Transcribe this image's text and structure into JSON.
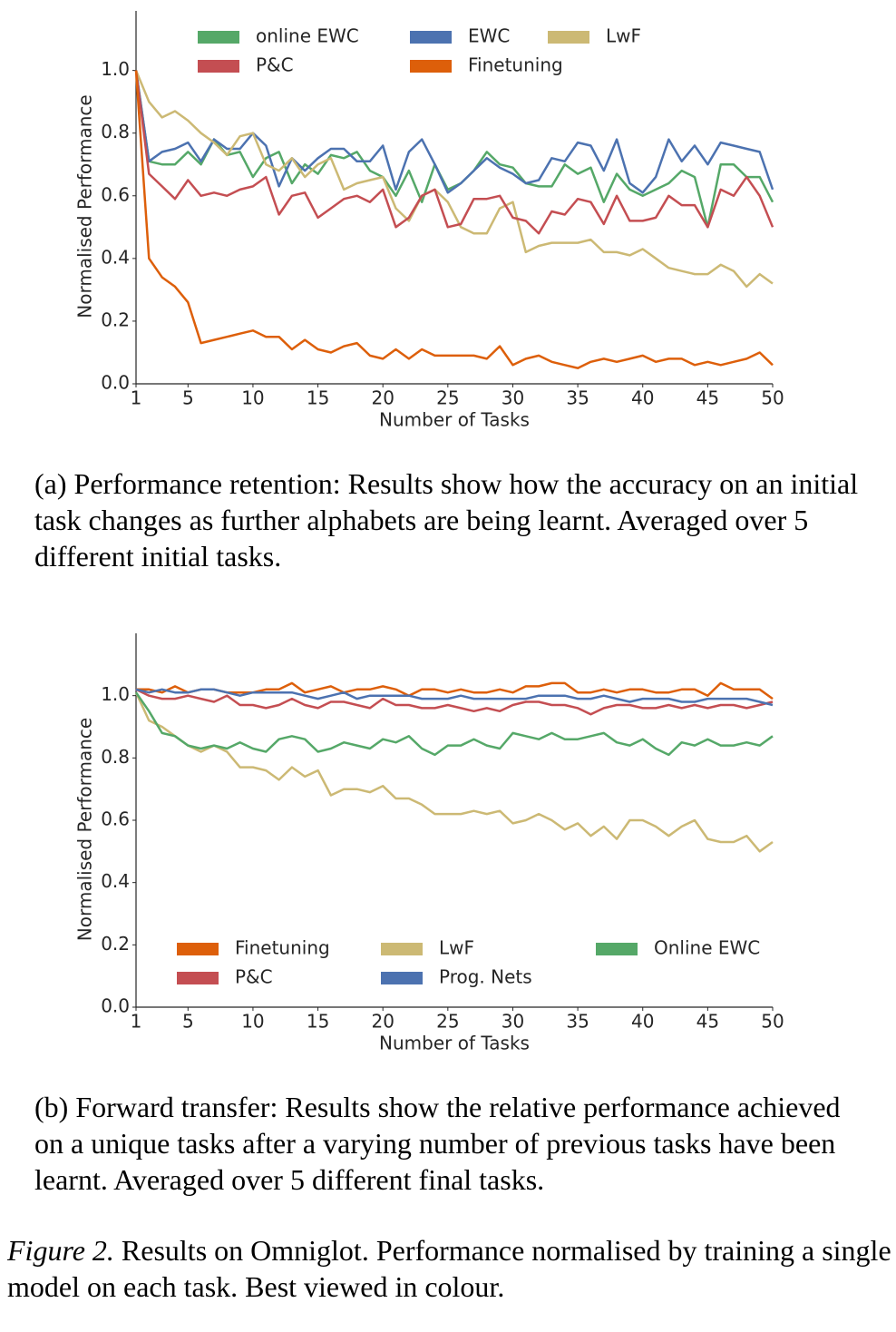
{
  "chart_data": [
    {
      "type": "line",
      "xlabel": "Number of Tasks",
      "ylabel": "Normalised Performance",
      "legend": "upper center",
      "x": [
        1,
        2,
        3,
        4,
        5,
        6,
        7,
        8,
        9,
        10,
        11,
        12,
        13,
        14,
        15,
        16,
        17,
        18,
        19,
        20,
        21,
        22,
        23,
        24,
        25,
        26,
        27,
        28,
        29,
        30,
        31,
        32,
        33,
        34,
        35,
        36,
        37,
        38,
        39,
        40,
        41,
        42,
        43,
        44,
        45,
        46,
        47,
        48,
        49,
        50
      ],
      "xlim": [
        1,
        50
      ],
      "xticks": [
        1,
        5,
        10,
        15,
        20,
        25,
        30,
        35,
        40,
        45,
        50
      ],
      "ylim": [
        0,
        1.19
      ],
      "yticks": [
        {
          "value": 0,
          "label": "0.0"
        },
        0.2,
        0.4,
        0.6,
        0.8,
        {
          "value": 1,
          "label": "1.0"
        }
      ],
      "series": [
        {
          "name": "online EWC",
          "color": "#55a868",
          "values": [
            1.0,
            0.71,
            0.7,
            0.7,
            0.74,
            0.7,
            0.78,
            0.73,
            0.74,
            0.66,
            0.72,
            0.74,
            0.64,
            0.7,
            0.67,
            0.73,
            0.72,
            0.74,
            0.68,
            0.66,
            0.6,
            0.68,
            0.58,
            0.7,
            0.62,
            0.64,
            0.68,
            0.74,
            0.7,
            0.69,
            0.64,
            0.63,
            0.63,
            0.7,
            0.67,
            0.69,
            0.58,
            0.67,
            0.62,
            0.6,
            0.62,
            0.64,
            0.68,
            0.66,
            0.5,
            0.7,
            0.7,
            0.66,
            0.66,
            0.58
          ]
        },
        {
          "name": "EWC",
          "color": "#4c72b0",
          "values": [
            1.0,
            0.71,
            0.74,
            0.75,
            0.77,
            0.71,
            0.78,
            0.75,
            0.75,
            0.8,
            0.76,
            0.63,
            0.72,
            0.68,
            0.72,
            0.75,
            0.75,
            0.71,
            0.71,
            0.76,
            0.62,
            0.74,
            0.78,
            0.7,
            0.61,
            0.64,
            0.68,
            0.72,
            0.69,
            0.67,
            0.64,
            0.65,
            0.72,
            0.71,
            0.77,
            0.76,
            0.68,
            0.78,
            0.64,
            0.61,
            0.66,
            0.78,
            0.71,
            0.76,
            0.7,
            0.77,
            0.76,
            0.75,
            0.74,
            0.62
          ]
        },
        {
          "name": "LwF",
          "color": "#ccb974",
          "values": [
            1.0,
            0.9,
            0.85,
            0.87,
            0.84,
            0.8,
            0.77,
            0.73,
            0.79,
            0.8,
            0.7,
            0.68,
            0.72,
            0.66,
            0.7,
            0.72,
            0.62,
            0.64,
            0.65,
            0.66,
            0.56,
            0.52,
            0.6,
            0.62,
            0.58,
            0.5,
            0.48,
            0.48,
            0.56,
            0.58,
            0.42,
            0.44,
            0.45,
            0.45,
            0.45,
            0.46,
            0.42,
            0.42,
            0.41,
            0.43,
            0.4,
            0.37,
            0.36,
            0.35,
            0.35,
            0.38,
            0.36,
            0.31,
            0.35,
            0.32
          ]
        },
        {
          "name": "P&C",
          "color": "#c44e52",
          "values": [
            1.0,
            0.67,
            0.63,
            0.59,
            0.65,
            0.6,
            0.61,
            0.6,
            0.62,
            0.63,
            0.66,
            0.54,
            0.6,
            0.61,
            0.53,
            0.56,
            0.59,
            0.6,
            0.58,
            0.62,
            0.5,
            0.53,
            0.6,
            0.62,
            0.5,
            0.51,
            0.59,
            0.59,
            0.6,
            0.53,
            0.52,
            0.48,
            0.55,
            0.54,
            0.59,
            0.58,
            0.51,
            0.6,
            0.52,
            0.52,
            0.53,
            0.6,
            0.57,
            0.57,
            0.5,
            0.62,
            0.6,
            0.66,
            0.6,
            0.5
          ]
        },
        {
          "name": "Finetuning",
          "color": "#dd5f0a",
          "values": [
            1.0,
            0.4,
            0.34,
            0.31,
            0.26,
            0.13,
            0.14,
            0.15,
            0.16,
            0.17,
            0.15,
            0.15,
            0.11,
            0.14,
            0.11,
            0.1,
            0.12,
            0.13,
            0.09,
            0.08,
            0.11,
            0.08,
            0.11,
            0.09,
            0.09,
            0.09,
            0.09,
            0.08,
            0.12,
            0.06,
            0.08,
            0.09,
            0.07,
            0.06,
            0.05,
            0.07,
            0.08,
            0.07,
            0.08,
            0.09,
            0.07,
            0.08,
            0.08,
            0.06,
            0.07,
            0.06,
            0.07,
            0.08,
            0.1,
            0.06
          ]
        }
      ]
    },
    {
      "type": "line",
      "xlabel": "Number of Tasks",
      "ylabel": "Normalised Performance",
      "legend": "lower center",
      "x": [
        1,
        2,
        3,
        4,
        5,
        6,
        7,
        8,
        9,
        10,
        11,
        12,
        13,
        14,
        15,
        16,
        17,
        18,
        19,
        20,
        21,
        22,
        23,
        24,
        25,
        26,
        27,
        28,
        29,
        30,
        31,
        32,
        33,
        34,
        35,
        36,
        37,
        38,
        39,
        40,
        41,
        42,
        43,
        44,
        45,
        46,
        47,
        48,
        49,
        50
      ],
      "xlim": [
        1,
        50
      ],
      "xticks": [
        1,
        5,
        10,
        15,
        20,
        25,
        30,
        35,
        40,
        45,
        50
      ],
      "ylim": [
        0,
        1.2
      ],
      "yticks": [
        {
          "value": 0,
          "label": "0.0"
        },
        0.2,
        0.4,
        0.6,
        0.8,
        {
          "value": 1,
          "label": "1.0"
        }
      ],
      "series": [
        {
          "name": "Finetuning",
          "color": "#dd5f0a",
          "values": [
            1.02,
            1.02,
            1.01,
            1.03,
            1.01,
            1.02,
            1.02,
            1.01,
            1.01,
            1.01,
            1.02,
            1.02,
            1.04,
            1.01,
            1.02,
            1.03,
            1.01,
            1.02,
            1.02,
            1.03,
            1.02,
            1.0,
            1.02,
            1.02,
            1.01,
            1.02,
            1.01,
            1.01,
            1.02,
            1.01,
            1.03,
            1.03,
            1.04,
            1.04,
            1.01,
            1.01,
            1.02,
            1.01,
            1.02,
            1.02,
            1.01,
            1.01,
            1.02,
            1.02,
            1.0,
            1.04,
            1.02,
            1.02,
            1.02,
            0.99
          ]
        },
        {
          "name": "LwF",
          "color": "#ccb974",
          "values": [
            1.01,
            0.92,
            0.9,
            0.87,
            0.84,
            0.82,
            0.84,
            0.82,
            0.77,
            0.77,
            0.76,
            0.73,
            0.77,
            0.74,
            0.76,
            0.68,
            0.7,
            0.7,
            0.69,
            0.71,
            0.67,
            0.67,
            0.65,
            0.62,
            0.62,
            0.62,
            0.63,
            0.62,
            0.63,
            0.59,
            0.6,
            0.62,
            0.6,
            0.57,
            0.59,
            0.55,
            0.58,
            0.54,
            0.6,
            0.6,
            0.58,
            0.55,
            0.58,
            0.6,
            0.54,
            0.53,
            0.53,
            0.55,
            0.5,
            0.53
          ]
        },
        {
          "name": "Online EWC",
          "color": "#55a868",
          "values": [
            1.01,
            0.95,
            0.88,
            0.87,
            0.84,
            0.83,
            0.84,
            0.83,
            0.85,
            0.83,
            0.82,
            0.86,
            0.87,
            0.86,
            0.82,
            0.83,
            0.85,
            0.84,
            0.83,
            0.86,
            0.85,
            0.87,
            0.83,
            0.81,
            0.84,
            0.84,
            0.86,
            0.84,
            0.83,
            0.88,
            0.87,
            0.86,
            0.88,
            0.86,
            0.86,
            0.87,
            0.88,
            0.85,
            0.84,
            0.86,
            0.83,
            0.81,
            0.85,
            0.84,
            0.86,
            0.84,
            0.84,
            0.85,
            0.84,
            0.87
          ]
        },
        {
          "name": "P&C",
          "color": "#c44e52",
          "values": [
            1.02,
            1.0,
            0.99,
            0.99,
            1.0,
            0.99,
            0.98,
            1.0,
            0.97,
            0.97,
            0.96,
            0.97,
            0.99,
            0.97,
            0.96,
            0.98,
            0.98,
            0.97,
            0.96,
            0.99,
            0.97,
            0.97,
            0.96,
            0.96,
            0.97,
            0.96,
            0.95,
            0.96,
            0.95,
            0.97,
            0.98,
            0.98,
            0.97,
            0.97,
            0.96,
            0.94,
            0.96,
            0.97,
            0.97,
            0.96,
            0.96,
            0.97,
            0.96,
            0.97,
            0.96,
            0.97,
            0.97,
            0.96,
            0.97,
            0.98
          ]
        },
        {
          "name": "Prog. Nets",
          "color": "#4c72b0",
          "values": [
            1.02,
            1.01,
            1.02,
            1.01,
            1.01,
            1.02,
            1.02,
            1.01,
            1.0,
            1.01,
            1.01,
            1.01,
            1.01,
            1.0,
            0.99,
            1.0,
            1.01,
            0.99,
            1.0,
            1.0,
            1.0,
            1.0,
            0.99,
            0.99,
            0.99,
            1.0,
            0.99,
            0.99,
            0.99,
            0.99,
            0.99,
            1.0,
            1.0,
            1.0,
            0.99,
            0.99,
            1.0,
            0.99,
            0.98,
            0.99,
            0.99,
            0.99,
            0.98,
            0.98,
            0.99,
            0.99,
            0.99,
            0.99,
            0.98,
            0.97
          ]
        }
      ]
    }
  ],
  "captions": [
    "(a) Performance retention: Results show how the accuracy on an initial task changes as further alphabets are being learnt. Averaged over 5 different initial tasks.",
    "(b) Forward transfer: Results show the relative performance achieved on a unique tasks after a varying number of previous tasks have been learnt. Averaged over 5 different final tasks."
  ],
  "figure_caption": {
    "label": "Figure 2.",
    "text": "Results on Omniglot. Performance normalised by training a single model on each task. Best viewed in colour."
  }
}
